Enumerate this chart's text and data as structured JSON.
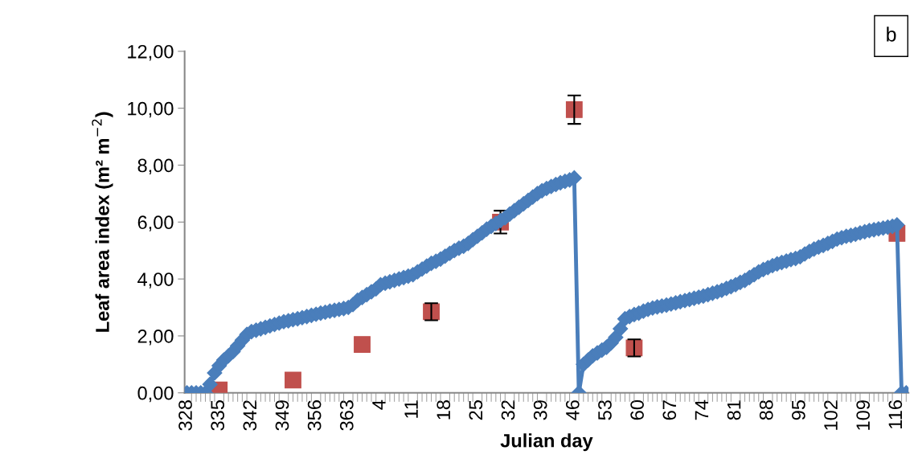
{
  "chart_data": {
    "type": "line",
    "ylabel": "Leaf area index (m² m$^{−2}$)",
    "xlabel": "Julian day",
    "annotations": [
      "b"
    ],
    "categories": [
      "328",
      null,
      null,
      null,
      null,
      null,
      null,
      "335",
      null,
      null,
      null,
      null,
      null,
      null,
      "342",
      null,
      null,
      null,
      null,
      null,
      null,
      "349",
      null,
      null,
      null,
      null,
      null,
      null,
      "356",
      null,
      null,
      null,
      null,
      null,
      null,
      "363",
      null,
      null,
      null,
      null,
      null,
      null,
      "4",
      null,
      null,
      null,
      null,
      null,
      null,
      "11",
      null,
      null,
      null,
      null,
      null,
      null,
      "18",
      null,
      null,
      null,
      null,
      null,
      null,
      "25",
      null,
      null,
      null,
      null,
      null,
      null,
      "32",
      null,
      null,
      null,
      null,
      null,
      null,
      "39",
      null,
      null,
      null,
      null,
      null,
      null,
      "46",
      null,
      null,
      null,
      null,
      null,
      null,
      "53",
      null,
      null,
      null,
      null,
      null,
      null,
      "60",
      null,
      null,
      null,
      null,
      null,
      null,
      "67",
      null,
      null,
      null,
      null,
      null,
      null,
      "74",
      null,
      null,
      null,
      null,
      null,
      null,
      "81",
      null,
      null,
      null,
      null,
      null,
      null,
      "88",
      null,
      null,
      null,
      null,
      null,
      null,
      "95",
      null,
      null,
      null,
      null,
      null,
      null,
      "102",
      null,
      null,
      null,
      null,
      null,
      null,
      "109",
      null,
      null,
      null,
      null,
      null,
      null,
      "116",
      null,
      null
    ],
    "ylim": [
      0,
      12
    ],
    "yticks": [
      {
        "value": 0,
        "label": "0,00"
      },
      {
        "value": 2,
        "label": "2,00"
      },
      {
        "value": 4,
        "label": "4,00"
      },
      {
        "value": 6,
        "label": "6,00"
      },
      {
        "value": 8,
        "label": "8,00"
      },
      {
        "value": 10,
        "label": "10,00"
      },
      {
        "value": 12,
        "label": "12,00"
      }
    ],
    "grid": false,
    "series": [
      {
        "marker": "diamond",
        "color": "#4a7ebb",
        "values": [
          0,
          0,
          0,
          0,
          0,
          0.3,
          0.7,
          0.95,
          1.15,
          1.3,
          1.45,
          1.65,
          1.85,
          2.05,
          2.15,
          2.2,
          2.25,
          2.3,
          2.35,
          2.4,
          2.45,
          2.5,
          2.53,
          2.57,
          2.6,
          2.64,
          2.68,
          2.72,
          2.76,
          2.8,
          2.83,
          2.87,
          2.9,
          2.93,
          2.96,
          3.0,
          3.1,
          3.25,
          3.35,
          3.45,
          3.55,
          3.65,
          3.8,
          3.85,
          3.9,
          3.95,
          4.0,
          4.05,
          4.1,
          4.15,
          4.25,
          4.35,
          4.45,
          4.55,
          4.62,
          4.7,
          4.8,
          4.9,
          5.0,
          5.08,
          5.15,
          5.25,
          5.38,
          5.5,
          5.62,
          5.75,
          5.85,
          5.95,
          6.05,
          6.15,
          6.28,
          6.4,
          6.52,
          6.64,
          6.76,
          6.88,
          7.0,
          7.1,
          7.18,
          7.25,
          7.32,
          7.38,
          7.43,
          7.48,
          7.55,
          0,
          1.0,
          1.15,
          1.3,
          1.4,
          1.5,
          1.6,
          1.75,
          1.95,
          2.25,
          2.6,
          2.68,
          2.75,
          2.8,
          2.87,
          2.93,
          2.98,
          3.02,
          3.05,
          3.08,
          3.12,
          3.16,
          3.2,
          3.24,
          3.28,
          3.32,
          3.36,
          3.4,
          3.45,
          3.5,
          3.55,
          3.6,
          3.67,
          3.73,
          3.8,
          3.88,
          3.95,
          4.05,
          4.15,
          4.25,
          4.33,
          4.4,
          4.47,
          4.53,
          4.58,
          4.63,
          4.68,
          4.72,
          4.78,
          4.88,
          4.97,
          5.05,
          5.12,
          5.18,
          5.25,
          5.32,
          5.4,
          5.45,
          5.5,
          5.53,
          5.57,
          5.62,
          5.66,
          5.7,
          5.73,
          5.76,
          5.79,
          5.82,
          5.85,
          5.9,
          0,
          0
        ]
      },
      {
        "type": "scatter",
        "marker": "square",
        "color": "#c0504d",
        "values": [
          null,
          null,
          null,
          null,
          null,
          null,
          null,
          0.1,
          null,
          null,
          null,
          null,
          null,
          null,
          null,
          null,
          null,
          null,
          null,
          null,
          null,
          null,
          null,
          0.45,
          null,
          null,
          null,
          null,
          null,
          null,
          null,
          null,
          null,
          null,
          null,
          null,
          null,
          null,
          1.7,
          null,
          null,
          null,
          null,
          null,
          null,
          null,
          null,
          null,
          null,
          null,
          null,
          null,
          null,
          2.85,
          null,
          null,
          null,
          null,
          null,
          null,
          null,
          null,
          null,
          null,
          null,
          null,
          null,
          null,
          6.0,
          null,
          null,
          null,
          null,
          null,
          null,
          null,
          null,
          null,
          null,
          null,
          null,
          null,
          null,
          null,
          9.95,
          null,
          null,
          null,
          null,
          null,
          null,
          null,
          null,
          null,
          null,
          null,
          null,
          1.58,
          null,
          null,
          null,
          null,
          null,
          null,
          null,
          null,
          null,
          null,
          null,
          null,
          null,
          null,
          null,
          null,
          null,
          null,
          null,
          null,
          null,
          null,
          null,
          null,
          null,
          null,
          null,
          null,
          null,
          null,
          null,
          null,
          null,
          null,
          null,
          null,
          null,
          null,
          null,
          null,
          null,
          null,
          null,
          null,
          null,
          null,
          null,
          null,
          null,
          null,
          null,
          null,
          null,
          null,
          null,
          null,
          5.6,
          null,
          null
        ],
        "errors": [
          null,
          null,
          null,
          null,
          null,
          null,
          null,
          null,
          null,
          null,
          null,
          null,
          null,
          null,
          null,
          null,
          null,
          null,
          null,
          null,
          null,
          null,
          null,
          null,
          null,
          null,
          null,
          null,
          null,
          null,
          null,
          null,
          null,
          null,
          null,
          null,
          null,
          null,
          null,
          null,
          null,
          null,
          null,
          null,
          null,
          null,
          null,
          null,
          null,
          null,
          null,
          null,
          null,
          0.3,
          null,
          null,
          null,
          null,
          null,
          null,
          null,
          null,
          null,
          null,
          null,
          null,
          null,
          null,
          0.4,
          null,
          null,
          null,
          null,
          null,
          null,
          null,
          null,
          null,
          null,
          null,
          null,
          null,
          null,
          null,
          0.5,
          null,
          null,
          null,
          null,
          null,
          null,
          null,
          null,
          null,
          null,
          null,
          null,
          0.3,
          null,
          null,
          null,
          null,
          null,
          null,
          null,
          null,
          null,
          null,
          null,
          null,
          null,
          null,
          null,
          null,
          null,
          null,
          null,
          null,
          null,
          null,
          null,
          null,
          null,
          null,
          null,
          null,
          null,
          null,
          null,
          null,
          null,
          null,
          null,
          null,
          null,
          null,
          null,
          null,
          null,
          null,
          null,
          null,
          null,
          null,
          null,
          null,
          null,
          null,
          null,
          null,
          null,
          null,
          null,
          null,
          null,
          null,
          null
        ]
      }
    ]
  }
}
